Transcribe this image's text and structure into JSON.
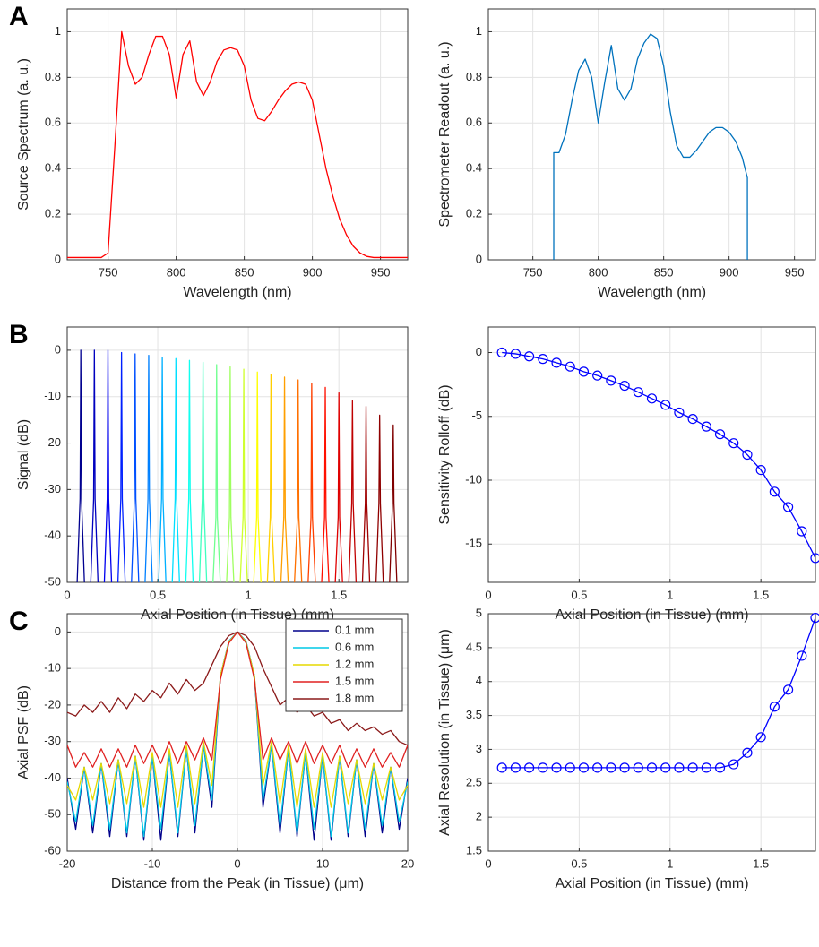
{
  "chart_data": [
    {
      "type": "line",
      "panel_label": "A",
      "xlabel": "Wavelength (nm)",
      "ylabel": "Source Spectrum (a. u.)",
      "xlim": [
        720,
        970
      ],
      "ylim": [
        0,
        1.1
      ],
      "xticks": [
        750,
        800,
        850,
        900,
        950
      ],
      "yticks": [
        0,
        0.2,
        0.4,
        0.6,
        0.8,
        1
      ],
      "grid": true,
      "x": [
        720,
        725,
        730,
        735,
        740,
        745,
        750,
        755,
        760,
        765,
        770,
        775,
        780,
        785,
        790,
        795,
        800,
        805,
        810,
        815,
        820,
        825,
        830,
        835,
        840,
        845,
        850,
        855,
        860,
        865,
        870,
        875,
        880,
        885,
        890,
        895,
        900,
        905,
        910,
        915,
        920,
        925,
        930,
        935,
        940,
        945,
        950,
        955,
        960,
        965,
        970
      ],
      "series": [
        {
          "color": "#ff0000",
          "values": [
            0.01,
            0.01,
            0.01,
            0.01,
            0.01,
            0.01,
            0.03,
            0.5,
            1.0,
            0.85,
            0.77,
            0.8,
            0.9,
            0.98,
            0.98,
            0.9,
            0.71,
            0.9,
            0.96,
            0.78,
            0.72,
            0.78,
            0.87,
            0.92,
            0.93,
            0.92,
            0.85,
            0.7,
            0.62,
            0.61,
            0.65,
            0.7,
            0.74,
            0.77,
            0.78,
            0.77,
            0.7,
            0.55,
            0.4,
            0.28,
            0.18,
            0.11,
            0.06,
            0.03,
            0.015,
            0.01,
            0.01,
            0.01,
            0.01,
            0.01,
            0.01
          ]
        }
      ]
    },
    {
      "type": "line",
      "xlabel": "Wavelength (nm)",
      "ylabel": "Spectrometer Readout (a. u.)",
      "xlim": [
        716,
        966
      ],
      "ylim": [
        0,
        1.1
      ],
      "xticks": [
        750,
        800,
        850,
        900,
        950
      ],
      "yticks": [
        0,
        0.2,
        0.4,
        0.6,
        0.8,
        1
      ],
      "grid": true,
      "x": [
        766,
        766,
        770,
        775,
        780,
        785,
        790,
        795,
        800,
        805,
        810,
        815,
        820,
        825,
        830,
        835,
        840,
        845,
        850,
        855,
        860,
        865,
        870,
        875,
        880,
        885,
        890,
        895,
        900,
        905,
        910,
        914,
        914
      ],
      "series": [
        {
          "color": "#0072bd",
          "values": [
            0,
            0.47,
            0.47,
            0.55,
            0.7,
            0.83,
            0.88,
            0.8,
            0.6,
            0.78,
            0.94,
            0.75,
            0.7,
            0.75,
            0.88,
            0.95,
            0.99,
            0.97,
            0.85,
            0.65,
            0.5,
            0.45,
            0.45,
            0.48,
            0.52,
            0.56,
            0.58,
            0.58,
            0.56,
            0.52,
            0.45,
            0.36,
            0
          ]
        }
      ]
    },
    {
      "type": "line",
      "panel_label": "B",
      "xlabel": "Axial Position (in Tissue) (mm)",
      "ylabel": "Signal (dB)",
      "xlim": [
        0,
        1.88
      ],
      "ylim": [
        -50,
        5
      ],
      "xticks": [
        0,
        0.5,
        1,
        1.5
      ],
      "yticks": [
        -50,
        -40,
        -30,
        -20,
        -10,
        0
      ],
      "grid": true,
      "series": [
        {
          "color": "#00008f",
          "x": [
            0.055,
            0.071,
            0.075,
            0.079,
            0.095
          ],
          "values": [
            -50,
            -32,
            0,
            -32,
            -50
          ]
        },
        {
          "color": "#0000bf",
          "x": [
            0.13,
            0.146,
            0.15,
            0.154,
            0.17
          ],
          "values": [
            -50,
            -32,
            0,
            -32,
            -50
          ]
        },
        {
          "color": "#0000ef",
          "x": [
            0.205,
            0.221,
            0.225,
            0.229,
            0.245
          ],
          "values": [
            -50,
            -32,
            0,
            -32,
            -50
          ]
        },
        {
          "color": "#0020ff",
          "x": [
            0.28,
            0.296,
            0.3,
            0.304,
            0.32
          ],
          "values": [
            -50,
            -32,
            -0.5,
            -32,
            -50
          ]
        },
        {
          "color": "#0050ff",
          "x": [
            0.355,
            0.371,
            0.375,
            0.379,
            0.395
          ],
          "values": [
            -50,
            -32,
            -0.8,
            -32,
            -50
          ]
        },
        {
          "color": "#0080ff",
          "x": [
            0.43,
            0.446,
            0.45,
            0.454,
            0.47
          ],
          "values": [
            -50,
            -32,
            -1.1,
            -32,
            -50
          ]
        },
        {
          "color": "#00b0ff",
          "x": [
            0.505,
            0.521,
            0.525,
            0.529,
            0.545
          ],
          "values": [
            -50,
            -32,
            -1.5,
            -32,
            -50
          ]
        },
        {
          "color": "#00dfff",
          "x": [
            0.58,
            0.596,
            0.6,
            0.604,
            0.62
          ],
          "values": [
            -50,
            -32,
            -1.8,
            -32,
            -50
          ]
        },
        {
          "color": "#10ffef",
          "x": [
            0.655,
            0.671,
            0.675,
            0.679,
            0.695
          ],
          "values": [
            -50,
            -32,
            -2.2,
            -32,
            -50
          ]
        },
        {
          "color": "#40ffbf",
          "x": [
            0.73,
            0.746,
            0.75,
            0.754,
            0.77
          ],
          "values": [
            -50,
            -32,
            -2.6,
            -32,
            -50
          ]
        },
        {
          "color": "#70ff8f",
          "x": [
            0.805,
            0.821,
            0.825,
            0.829,
            0.845
          ],
          "values": [
            -50,
            -36,
            -3.1,
            -36,
            -50
          ]
        },
        {
          "color": "#9fff60",
          "x": [
            0.88,
            0.896,
            0.9,
            0.904,
            0.92
          ],
          "values": [
            -50,
            -36,
            -3.6,
            -36,
            -50
          ]
        },
        {
          "color": "#cfff30",
          "x": [
            0.955,
            0.971,
            0.975,
            0.979,
            0.995
          ],
          "values": [
            -50,
            -36,
            -4.1,
            -36,
            -50
          ]
        },
        {
          "color": "#ffff00",
          "x": [
            1.03,
            1.046,
            1.05,
            1.054,
            1.07
          ],
          "values": [
            -50,
            -36,
            -4.7,
            -36,
            -50
          ]
        },
        {
          "color": "#ffcf00",
          "x": [
            1.105,
            1.121,
            1.125,
            1.129,
            1.145
          ],
          "values": [
            -50,
            -36,
            -5.2,
            -36,
            -50
          ]
        },
        {
          "color": "#ff9f00",
          "x": [
            1.18,
            1.196,
            1.2,
            1.204,
            1.22
          ],
          "values": [
            -50,
            -36,
            -5.8,
            -36,
            -50
          ]
        },
        {
          "color": "#ff7000",
          "x": [
            1.255,
            1.271,
            1.275,
            1.279,
            1.295
          ],
          "values": [
            -50,
            -36,
            -6.4,
            -36,
            -50
          ]
        },
        {
          "color": "#ff4000",
          "x": [
            1.33,
            1.346,
            1.35,
            1.354,
            1.37
          ],
          "values": [
            -50,
            -36,
            -7.1,
            -36,
            -50
          ]
        },
        {
          "color": "#ff1000",
          "x": [
            1.405,
            1.421,
            1.425,
            1.429,
            1.445
          ],
          "values": [
            -50,
            -36,
            -8,
            -36,
            -50
          ]
        },
        {
          "color": "#df0000",
          "x": [
            1.48,
            1.496,
            1.5,
            1.504,
            1.52
          ],
          "values": [
            -50,
            -36,
            -9.2,
            -36,
            -50
          ]
        },
        {
          "color": "#bf0000",
          "x": [
            1.555,
            1.571,
            1.575,
            1.579,
            1.595
          ],
          "values": [
            -50,
            -33,
            -10.9,
            -33,
            -50
          ]
        },
        {
          "color": "#9f0000",
          "x": [
            1.63,
            1.646,
            1.65,
            1.654,
            1.67
          ],
          "values": [
            -50,
            -33,
            -12.1,
            -33,
            -50
          ]
        },
        {
          "color": "#8f0000",
          "x": [
            1.705,
            1.721,
            1.725,
            1.729,
            1.745
          ],
          "values": [
            -50,
            -33,
            -14,
            -33,
            -50
          ]
        },
        {
          "color": "#800000",
          "x": [
            1.78,
            1.796,
            1.8,
            1.804,
            1.82
          ],
          "values": [
            -50,
            -33,
            -16.1,
            -33,
            -50
          ]
        }
      ]
    },
    {
      "type": "line",
      "xlabel": "Axial Position (in Tissue) (mm)",
      "ylabel": "Sensitivity Rolloff (dB)",
      "xlim": [
        0,
        1.8
      ],
      "ylim": [
        -18,
        2
      ],
      "xticks": [
        0,
        0.5,
        1,
        1.5
      ],
      "yticks": [
        -15,
        -10,
        -5,
        0
      ],
      "grid": true,
      "x": [
        0.075,
        0.15,
        0.225,
        0.3,
        0.375,
        0.45,
        0.525,
        0.6,
        0.675,
        0.75,
        0.825,
        0.9,
        0.975,
        1.05,
        1.125,
        1.2,
        1.275,
        1.35,
        1.425,
        1.5,
        1.575,
        1.65,
        1.725,
        1.8
      ],
      "series": [
        {
          "color": "#0000ff",
          "marker": "o",
          "values": [
            0,
            -0.1,
            -0.3,
            -0.5,
            -0.8,
            -1.1,
            -1.5,
            -1.8,
            -2.2,
            -2.6,
            -3.1,
            -3.6,
            -4.1,
            -4.7,
            -5.2,
            -5.8,
            -6.4,
            -7.1,
            -8,
            -9.2,
            -10.9,
            -12.1,
            -14,
            -16.1
          ]
        }
      ]
    },
    {
      "type": "line",
      "panel_label": "C",
      "xlabel": "Distance from the Peak (in Tissue) (μm)",
      "ylabel": "Axial PSF (dB)",
      "xlim": [
        -20,
        20
      ],
      "ylim": [
        -60,
        5
      ],
      "xticks": [
        -20,
        -10,
        0,
        10,
        20
      ],
      "yticks": [
        -60,
        -50,
        -40,
        -30,
        -20,
        -10,
        0
      ],
      "grid": true,
      "legend": "upper right",
      "x": [
        -20,
        -19,
        -18,
        -17,
        -16,
        -15,
        -14,
        -13,
        -12,
        -11,
        -10,
        -9,
        -8,
        -7,
        -6,
        -5,
        -4,
        -3,
        -2,
        -1,
        0,
        1,
        2,
        3,
        4,
        5,
        6,
        7,
        8,
        9,
        10,
        11,
        12,
        13,
        14,
        15,
        16,
        17,
        18,
        19,
        20
      ],
      "series": [
        {
          "name": "0.1 mm",
          "color": "#00008b",
          "values": [
            -40,
            -54,
            -37,
            -55,
            -36,
            -56,
            -35,
            -56,
            -34,
            -57,
            -34,
            -57,
            -33,
            -56,
            -32,
            -55,
            -31,
            -48,
            -12,
            -2.5,
            0,
            -2.5,
            -12,
            -48,
            -31,
            -55,
            -32,
            -56,
            -33,
            -57,
            -34,
            -57,
            -34,
            -56,
            -35,
            -56,
            -36,
            -55,
            -37,
            -54,
            -40
          ]
        },
        {
          "name": "0.6 mm",
          "color": "#00c8e6",
          "values": [
            -41,
            -52,
            -37,
            -53,
            -36,
            -54,
            -35,
            -55,
            -34,
            -56,
            -34,
            -54,
            -33,
            -55,
            -32,
            -53,
            -31,
            -46,
            -12,
            -2.5,
            0,
            -2.5,
            -12,
            -46,
            -31,
            -53,
            -32,
            -55,
            -33,
            -54,
            -34,
            -56,
            -34,
            -55,
            -35,
            -54,
            -36,
            -53,
            -37,
            -52,
            -41
          ]
        },
        {
          "name": "1.2 mm",
          "color": "#e6d800",
          "values": [
            -42,
            -46,
            -37,
            -46,
            -36,
            -47,
            -35,
            -47,
            -34,
            -48,
            -33,
            -48,
            -32,
            -48,
            -31,
            -47,
            -30,
            -42,
            -12,
            -2.7,
            0,
            -2.7,
            -12,
            -42,
            -30,
            -47,
            -31,
            -48,
            -32,
            -48,
            -33,
            -48,
            -34,
            -47,
            -35,
            -47,
            -36,
            -46,
            -37,
            -46,
            -42
          ]
        },
        {
          "name": "1.5 mm",
          "color": "#e02020",
          "values": [
            -31,
            -37,
            -33,
            -37,
            -32,
            -37,
            -32,
            -37,
            -31,
            -36,
            -31,
            -36,
            -30,
            -36,
            -30,
            -35,
            -29,
            -35,
            -13,
            -3,
            0,
            -3,
            -13,
            -35,
            -29,
            -35,
            -30,
            -36,
            -30,
            -36,
            -31,
            -36,
            -31,
            -37,
            -32,
            -37,
            -32,
            -37,
            -33,
            -37,
            -31
          ]
        },
        {
          "name": "1.8 mm",
          "color": "#8b1a1a",
          "values": [
            -22,
            -23,
            -20,
            -22,
            -19,
            -22,
            -18,
            -21,
            -17,
            -19,
            -16,
            -18,
            -14,
            -17,
            -13,
            -16,
            -14,
            -9,
            -4,
            -1,
            0,
            -1,
            -4,
            -10,
            -15,
            -20,
            -18,
            -22,
            -20,
            -23,
            -22,
            -25,
            -24,
            -27,
            -25,
            -27,
            -26,
            -28,
            -27,
            -30,
            -31
          ]
        }
      ]
    },
    {
      "type": "line",
      "xlabel": "Axial Position (in Tissue) (mm)",
      "ylabel": "Axial Resolution (in Tissue) (μm)",
      "xlim": [
        0,
        1.8
      ],
      "ylim": [
        1.5,
        5
      ],
      "xticks": [
        0,
        0.5,
        1,
        1.5
      ],
      "yticks": [
        1.5,
        2,
        2.5,
        3,
        3.5,
        4,
        4.5,
        5
      ],
      "grid": true,
      "x": [
        0.075,
        0.15,
        0.225,
        0.3,
        0.375,
        0.45,
        0.525,
        0.6,
        0.675,
        0.75,
        0.825,
        0.9,
        0.975,
        1.05,
        1.125,
        1.2,
        1.275,
        1.35,
        1.425,
        1.5,
        1.575,
        1.65,
        1.725,
        1.8
      ],
      "series": [
        {
          "color": "#0000ff",
          "marker": "o",
          "values": [
            2.73,
            2.73,
            2.73,
            2.73,
            2.73,
            2.73,
            2.73,
            2.73,
            2.73,
            2.73,
            2.73,
            2.73,
            2.73,
            2.73,
            2.73,
            2.73,
            2.73,
            2.78,
            2.95,
            3.18,
            3.63,
            3.88,
            4.38,
            4.94
          ]
        }
      ]
    }
  ]
}
